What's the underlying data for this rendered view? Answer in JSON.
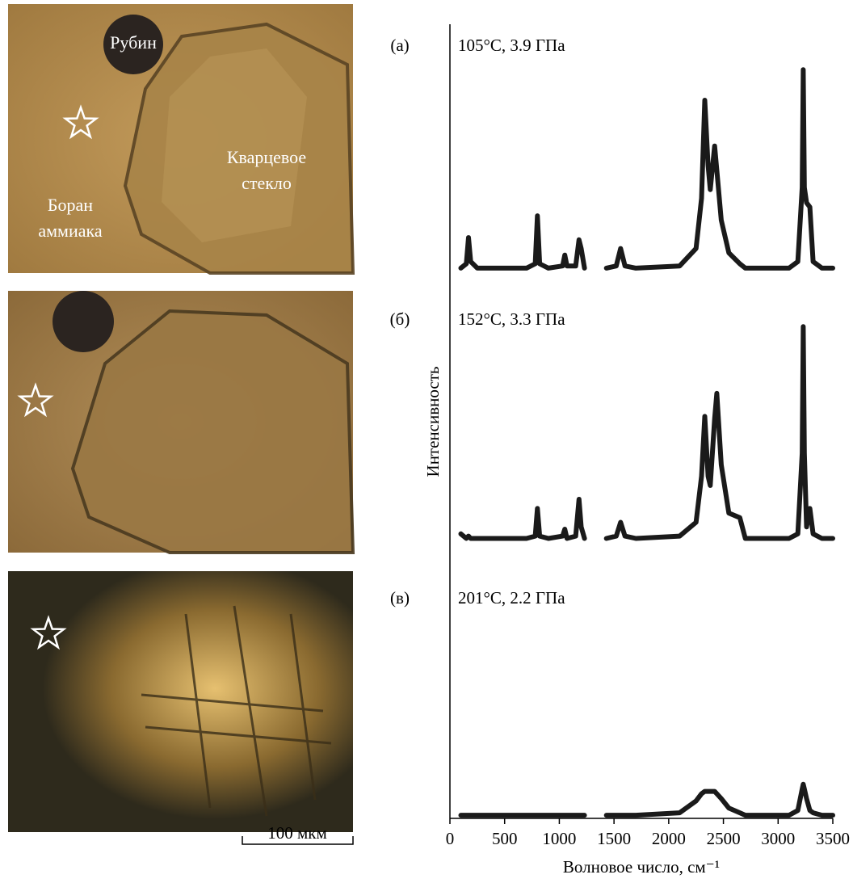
{
  "images": {
    "ruby": "Рубин",
    "quartz": [
      "Кварцевое",
      "стекло"
    ],
    "borane": [
      "Боран",
      "аммиака"
    ],
    "scale_bar": "100 мкм"
  },
  "chart_data": {
    "type": "line",
    "y_label": "Интенсивность",
    "x_label": "Волновое число, см⁻¹",
    "xlim": [
      0,
      3500
    ],
    "xticks": [
      0,
      500,
      1000,
      1500,
      2000,
      2500,
      3000,
      3500
    ],
    "ylim": [
      0,
      100
    ],
    "color": "#1a1a1a",
    "x": [
      100,
      150,
      170,
      190,
      250,
      700,
      780,
      800,
      820,
      900,
      1030,
      1050,
      1070,
      1150,
      1180,
      1200,
      1230,
      1330,
      1430,
      1520,
      1560,
      1600,
      1700,
      2100,
      2250,
      2300,
      2330,
      2360,
      2380,
      2420,
      2440,
      2480,
      2550,
      2650,
      2700,
      3100,
      3180,
      3220,
      3230,
      3240,
      3260,
      3290,
      3320,
      3400,
      3500
    ],
    "series": [
      {
        "panel": "(а)",
        "name": "105°C, 3.9 ГПа",
        "values": [
          3,
          5,
          17,
          6,
          3,
          3,
          5,
          27,
          5,
          3,
          4,
          9,
          4,
          4,
          16,
          12,
          3,
          null,
          3,
          4,
          12,
          4,
          3,
          4,
          12,
          35,
          80,
          50,
          39,
          59,
          48,
          25,
          10,
          5,
          3,
          3,
          6,
          40,
          94,
          40,
          33,
          31,
          6,
          3,
          3
        ]
      },
      {
        "panel": "(б)",
        "name": "152°C, 3.3 ГПа",
        "values": [
          5,
          3,
          4,
          3,
          3,
          3,
          4,
          16,
          4,
          3,
          4,
          7,
          3,
          4,
          20,
          8,
          3,
          null,
          3,
          4,
          10,
          4,
          3,
          4,
          10,
          30,
          56,
          30,
          26,
          55,
          66,
          35,
          14,
          12,
          3,
          3,
          5,
          40,
          95,
          40,
          8,
          16,
          5,
          3,
          3
        ]
      },
      {
        "panel": "(в)",
        "name": "201°C, 2.2 ГПа",
        "values": [
          2,
          2,
          2,
          2,
          2,
          2,
          2,
          2,
          2,
          2,
          2,
          2,
          2,
          2,
          2,
          2,
          2,
          null,
          2,
          2,
          2,
          2,
          2,
          3,
          8,
          11,
          12,
          12,
          12,
          12,
          11,
          9,
          5,
          3,
          2,
          2,
          4,
          13,
          15,
          13,
          9,
          4,
          3,
          2,
          2
        ]
      }
    ]
  }
}
